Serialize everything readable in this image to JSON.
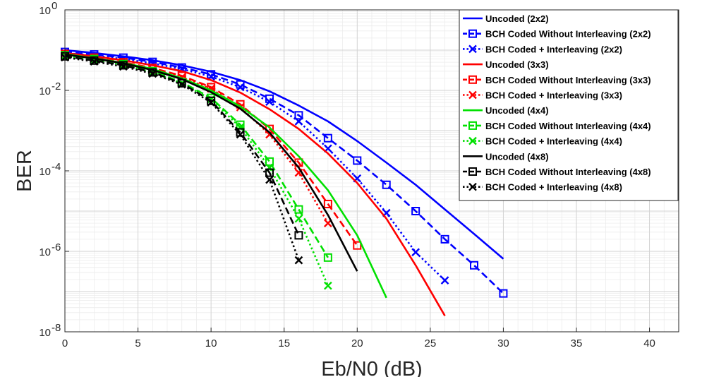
{
  "chart_data": {
    "type": "line",
    "xlabel": "Eb/N0 (dB)",
    "ylabel": "BER",
    "xlim": [
      0,
      42
    ],
    "ylim": [
      1e-08,
      1
    ],
    "yscale": "log",
    "grid": "on (major and minor)",
    "legend_position": "top-right",
    "x_ticks": [
      "0",
      "5",
      "10",
      "15",
      "20",
      "25",
      "30",
      "35",
      "40"
    ],
    "y_ticks": [
      {
        "base": "10",
        "exp": "0"
      },
      {
        "base": "10",
        "exp": "-2"
      },
      {
        "base": "10",
        "exp": "-4"
      },
      {
        "base": "10",
        "exp": "-6"
      },
      {
        "base": "10",
        "exp": "-8"
      }
    ],
    "series": [
      {
        "name": "Uncoded (2x2)",
        "color": "#0000ff",
        "dash": "solid",
        "marker": "none",
        "x": [
          0,
          2,
          4,
          6,
          8,
          10,
          12,
          14,
          16,
          18,
          20,
          22,
          24,
          26,
          28,
          30
        ],
        "y": [
          0.1,
          0.085,
          0.07,
          0.056,
          0.042,
          0.029,
          0.018,
          0.0095,
          0.0042,
          0.0017,
          0.00055,
          0.00016,
          4.5e-05,
          1.1e-05,
          2.7e-06,
          6.5e-07
        ]
      },
      {
        "name": "BCH Coded Without Interleaving (2x2)",
        "color": "#0000ff",
        "dash": "dashed",
        "marker": "square",
        "x": [
          0,
          2,
          4,
          6,
          8,
          10,
          12,
          14,
          16,
          18,
          20,
          22,
          24,
          26,
          28,
          30
        ],
        "y": [
          0.09,
          0.078,
          0.065,
          0.051,
          0.037,
          0.025,
          0.014,
          0.0062,
          0.0024,
          0.00065,
          0.00018,
          4.5e-05,
          1e-05,
          2e-06,
          4.5e-07,
          9e-08
        ]
      },
      {
        "name": "BCH Coded + Interleaving (2x2)",
        "color": "#0000ff",
        "dash": "dotted",
        "marker": "x",
        "x": [
          0,
          2,
          4,
          6,
          8,
          10,
          12,
          14,
          16,
          18,
          20,
          22,
          24,
          26
        ],
        "y": [
          0.085,
          0.073,
          0.06,
          0.047,
          0.034,
          0.022,
          0.012,
          0.0052,
          0.0017,
          0.00036,
          6.5e-05,
          9e-06,
          9.5e-07,
          1.9e-07
        ]
      },
      {
        "name": "Uncoded (3x3)",
        "color": "#ff0000",
        "dash": "solid",
        "marker": "none",
        "x": [
          0,
          2,
          4,
          6,
          8,
          10,
          12,
          14,
          16,
          18,
          20,
          22,
          24,
          26
        ],
        "y": [
          0.085,
          0.07,
          0.056,
          0.042,
          0.03,
          0.018,
          0.0088,
          0.0034,
          0.0011,
          0.00027,
          5e-05,
          6.5e-06,
          4.5e-07,
          2.5e-08
        ]
      },
      {
        "name": "BCH Coded Without Interleaving (3x3)",
        "color": "#ff0000",
        "dash": "dashed",
        "marker": "square",
        "x": [
          0,
          2,
          4,
          6,
          8,
          10,
          12,
          14,
          16,
          18,
          20
        ],
        "y": [
          0.08,
          0.065,
          0.05,
          0.036,
          0.023,
          0.012,
          0.0045,
          0.0011,
          0.00016,
          1.5e-05,
          1.4e-06
        ]
      },
      {
        "name": "BCH Coded + Interleaving (3x3)",
        "color": "#ff0000",
        "dash": "dotted",
        "marker": "x",
        "x": [
          0,
          2,
          4,
          6,
          8,
          10,
          12,
          14,
          16,
          18
        ],
        "y": [
          0.075,
          0.062,
          0.047,
          0.033,
          0.021,
          0.011,
          0.0038,
          0.0008,
          9e-05,
          5e-06
        ]
      },
      {
        "name": "Uncoded (4x4)",
        "color": "#00e000",
        "dash": "solid",
        "marker": "none",
        "x": [
          0,
          2,
          4,
          6,
          8,
          10,
          12,
          14,
          16,
          18,
          20,
          22
        ],
        "y": [
          0.08,
          0.063,
          0.048,
          0.034,
          0.02,
          0.01,
          0.004,
          0.0012,
          0.00023,
          3.3e-05,
          2.5e-06,
          7e-08
        ]
      },
      {
        "name": "BCH Coded Without Interleaving (4x4)",
        "color": "#00e000",
        "dash": "dashed",
        "marker": "square",
        "x": [
          0,
          2,
          4,
          6,
          8,
          10,
          12,
          14,
          16,
          18
        ],
        "y": [
          0.075,
          0.06,
          0.045,
          0.03,
          0.016,
          0.0065,
          0.0014,
          0.00017,
          1.1e-05,
          7e-07
        ]
      },
      {
        "name": "BCH Coded + Interleaving (4x4)",
        "color": "#00e000",
        "dash": "dotted",
        "marker": "x",
        "x": [
          0,
          2,
          4,
          6,
          8,
          10,
          12,
          14,
          16,
          18
        ],
        "y": [
          0.072,
          0.058,
          0.043,
          0.028,
          0.015,
          0.006,
          0.0012,
          0.00012,
          6.5e-06,
          1.4e-07
        ]
      },
      {
        "name": "Uncoded (4x8)",
        "color": "#000000",
        "dash": "solid",
        "marker": "none",
        "x": [
          0,
          2,
          4,
          6,
          8,
          10,
          12,
          14,
          16,
          18,
          20
        ],
        "y": [
          0.078,
          0.062,
          0.047,
          0.032,
          0.019,
          0.009,
          0.0035,
          0.0009,
          0.00012,
          8e-06,
          3.2e-07
        ]
      },
      {
        "name": "BCH Coded Without Interleaving (4x8)",
        "color": "#000000",
        "dash": "dashed",
        "marker": "square",
        "x": [
          0,
          2,
          4,
          6,
          8,
          10,
          12,
          14,
          16
        ],
        "y": [
          0.07,
          0.055,
          0.042,
          0.028,
          0.015,
          0.0055,
          0.0009,
          9e-05,
          2.5e-06
        ]
      },
      {
        "name": "BCH Coded + Interleaving (4x8)",
        "color": "#000000",
        "dash": "dotted",
        "marker": "x",
        "x": [
          0,
          2,
          4,
          6,
          8,
          10,
          12,
          14,
          16
        ],
        "y": [
          0.066,
          0.052,
          0.039,
          0.026,
          0.014,
          0.005,
          0.0008,
          6e-05,
          6e-07
        ]
      }
    ]
  }
}
